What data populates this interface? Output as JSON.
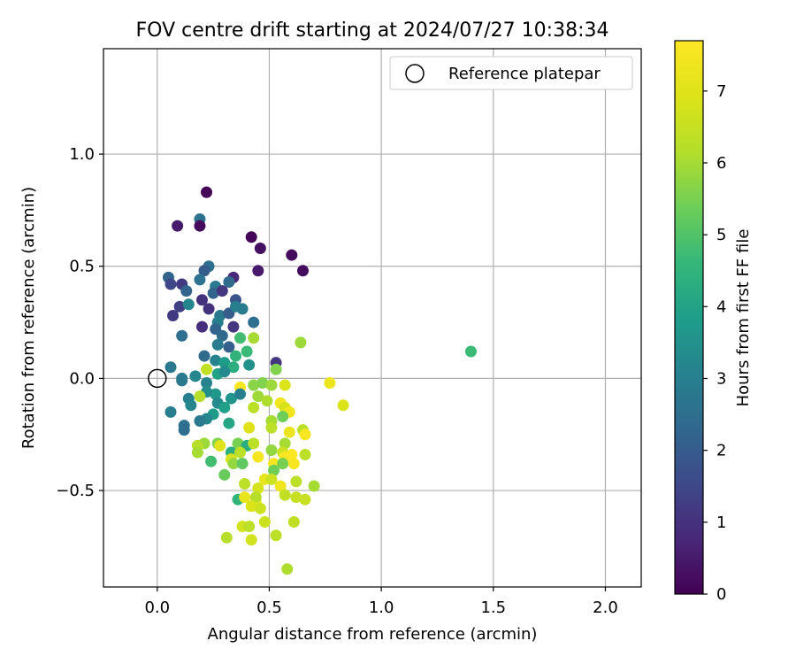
{
  "chart_data": {
    "type": "scatter",
    "title": "FOV centre drift starting at 2024/07/27 10:38:34",
    "xlabel": "Angular distance from reference (arcmin)",
    "ylabel": "Rotation from reference (arcmin)",
    "xlim": [
      -0.24,
      2.16
    ],
    "ylim": [
      -0.93,
      1.47
    ],
    "xticks": [
      0.0,
      0.5,
      1.0,
      1.5,
      2.0
    ],
    "xtick_labels": [
      "0.0",
      "0.5",
      "1.0",
      "1.5",
      "2.0"
    ],
    "yticks": [
      -0.5,
      0.0,
      0.5,
      1.0
    ],
    "ytick_labels": [
      "−0.5",
      "0.0",
      "0.5",
      "1.0"
    ],
    "grid": true,
    "legend": {
      "placement": "top-right",
      "entries": [
        "Reference platepar"
      ]
    },
    "reference_point": {
      "x": 0.0,
      "y": 0.0,
      "label": "Reference platepar"
    },
    "colorbar": {
      "label": "Hours from first FF file",
      "colormap": "viridis",
      "range": [
        0,
        7.7
      ],
      "ticks": [
        0,
        1,
        2,
        3,
        4,
        5,
        6,
        7
      ],
      "tick_labels": [
        "0",
        "1",
        "2",
        "3",
        "4",
        "5",
        "6",
        "7"
      ]
    },
    "points": [
      {
        "x": 0.22,
        "y": 0.83,
        "c": 0.1
      },
      {
        "x": 0.19,
        "y": 0.71,
        "c": 2.6
      },
      {
        "x": 0.09,
        "y": 0.68,
        "c": 0.5
      },
      {
        "x": 0.19,
        "y": 0.68,
        "c": 0.2
      },
      {
        "x": 0.42,
        "y": 0.63,
        "c": 0.1
      },
      {
        "x": 0.46,
        "y": 0.58,
        "c": 0.3
      },
      {
        "x": 0.6,
        "y": 0.55,
        "c": 0.2
      },
      {
        "x": 0.65,
        "y": 0.48,
        "c": 0.2
      },
      {
        "x": 0.45,
        "y": 0.48,
        "c": 0.5
      },
      {
        "x": 0.23,
        "y": 0.5,
        "c": 2.5
      },
      {
        "x": 0.21,
        "y": 0.48,
        "c": 2.0
      },
      {
        "x": 0.05,
        "y": 0.45,
        "c": 2.2
      },
      {
        "x": 0.34,
        "y": 0.45,
        "c": 0.8
      },
      {
        "x": 0.06,
        "y": 0.42,
        "c": 1.5
      },
      {
        "x": 0.11,
        "y": 0.42,
        "c": 1.2
      },
      {
        "x": 0.19,
        "y": 0.44,
        "c": 2.6
      },
      {
        "x": 0.32,
        "y": 0.43,
        "c": 2.4
      },
      {
        "x": 0.26,
        "y": 0.41,
        "c": 2.8
      },
      {
        "x": 0.13,
        "y": 0.39,
        "c": 2.2
      },
      {
        "x": 0.25,
        "y": 0.38,
        "c": 2.2
      },
      {
        "x": 0.29,
        "y": 0.39,
        "c": 1.1
      },
      {
        "x": 0.35,
        "y": 0.35,
        "c": 1.8
      },
      {
        "x": 0.2,
        "y": 0.35,
        "c": 1.0
      },
      {
        "x": 0.1,
        "y": 0.32,
        "c": 1.3
      },
      {
        "x": 0.14,
        "y": 0.33,
        "c": 3.2
      },
      {
        "x": 0.23,
        "y": 0.31,
        "c": 1.0
      },
      {
        "x": 0.28,
        "y": 0.28,
        "c": 2.8
      },
      {
        "x": 0.32,
        "y": 0.29,
        "c": 2.0
      },
      {
        "x": 0.35,
        "y": 0.32,
        "c": 3.0
      },
      {
        "x": 0.38,
        "y": 0.31,
        "c": 2.9
      },
      {
        "x": 0.07,
        "y": 0.28,
        "c": 1.2
      },
      {
        "x": 0.27,
        "y": 0.25,
        "c": 3.0
      },
      {
        "x": 0.43,
        "y": 0.25,
        "c": 2.5
      },
      {
        "x": 0.2,
        "y": 0.23,
        "c": 0.9
      },
      {
        "x": 0.26,
        "y": 0.22,
        "c": 2.2
      },
      {
        "x": 0.34,
        "y": 0.23,
        "c": 1.1
      },
      {
        "x": 0.11,
        "y": 0.19,
        "c": 2.5
      },
      {
        "x": 0.29,
        "y": 0.19,
        "c": 2.4
      },
      {
        "x": 0.37,
        "y": 0.18,
        "c": 4.8
      },
      {
        "x": 0.43,
        "y": 0.18,
        "c": 6.0
      },
      {
        "x": 0.64,
        "y": 0.16,
        "c": 5.9
      },
      {
        "x": 0.27,
        "y": 0.15,
        "c": 2.9
      },
      {
        "x": 0.32,
        "y": 0.14,
        "c": 2.1
      },
      {
        "x": 0.4,
        "y": 0.12,
        "c": 4.7
      },
      {
        "x": 1.4,
        "y": 0.12,
        "c": 4.7
      },
      {
        "x": 0.21,
        "y": 0.1,
        "c": 2.4
      },
      {
        "x": 0.35,
        "y": 0.1,
        "c": 4.5
      },
      {
        "x": 0.53,
        "y": 0.07,
        "c": 1.1
      },
      {
        "x": 0.26,
        "y": 0.08,
        "c": 3.1
      },
      {
        "x": 0.3,
        "y": 0.07,
        "c": 3.8
      },
      {
        "x": 0.41,
        "y": 0.06,
        "c": 3.5
      },
      {
        "x": 0.06,
        "y": 0.05,
        "c": 2.8
      },
      {
        "x": 0.22,
        "y": 0.04,
        "c": 6.4
      },
      {
        "x": 0.34,
        "y": 0.05,
        "c": 4.3
      },
      {
        "x": 0.53,
        "y": 0.04,
        "c": 5.6
      },
      {
        "x": 0.17,
        "y": 0.01,
        "c": 3.2
      },
      {
        "x": 0.27,
        "y": 0.02,
        "c": 4.0
      },
      {
        "x": 0.3,
        "y": 0.03,
        "c": 3.3
      },
      {
        "x": 0.11,
        "y": -0.01,
        "c": 2.8
      },
      {
        "x": 0.11,
        "y": 0.0,
        "c": 2.8
      },
      {
        "x": 0.22,
        "y": -0.02,
        "c": 3.1
      },
      {
        "x": 0.37,
        "y": -0.04,
        "c": 7.6
      },
      {
        "x": 0.43,
        "y": -0.03,
        "c": 5.7
      },
      {
        "x": 0.47,
        "y": -0.02,
        "c": 5.6
      },
      {
        "x": 0.51,
        "y": -0.03,
        "c": 5.9
      },
      {
        "x": 0.57,
        "y": -0.03,
        "c": 6.9
      },
      {
        "x": 0.77,
        "y": -0.02,
        "c": 7.3
      },
      {
        "x": 0.26,
        "y": -0.07,
        "c": 3.7
      },
      {
        "x": 0.33,
        "y": -0.09,
        "c": 3.6
      },
      {
        "x": 0.37,
        "y": -0.07,
        "c": 3.0
      },
      {
        "x": 0.22,
        "y": -0.06,
        "c": 3.4
      },
      {
        "x": 0.14,
        "y": -0.09,
        "c": 3.0
      },
      {
        "x": 0.19,
        "y": -0.08,
        "c": 6.2
      },
      {
        "x": 0.45,
        "y": -0.08,
        "c": 5.9
      },
      {
        "x": 0.49,
        "y": -0.1,
        "c": 6.1
      },
      {
        "x": 0.55,
        "y": -0.11,
        "c": 7.4
      },
      {
        "x": 0.57,
        "y": -0.13,
        "c": 6.8
      },
      {
        "x": 0.83,
        "y": -0.12,
        "c": 6.9
      },
      {
        "x": 0.15,
        "y": -0.12,
        "c": 3.2
      },
      {
        "x": 0.27,
        "y": -0.11,
        "c": 3.3
      },
      {
        "x": 0.3,
        "y": -0.13,
        "c": 3.9
      },
      {
        "x": 0.43,
        "y": -0.13,
        "c": 6.3
      },
      {
        "x": 0.59,
        "y": -0.15,
        "c": 7.4
      },
      {
        "x": 0.06,
        "y": -0.15,
        "c": 3.0
      },
      {
        "x": 0.25,
        "y": -0.16,
        "c": 3.8
      },
      {
        "x": 0.22,
        "y": -0.18,
        "c": 3.2
      },
      {
        "x": 0.56,
        "y": -0.17,
        "c": 5.4
      },
      {
        "x": 0.19,
        "y": -0.19,
        "c": 2.8
      },
      {
        "x": 0.32,
        "y": -0.2,
        "c": 4.1
      },
      {
        "x": 0.51,
        "y": -0.19,
        "c": 6.0
      },
      {
        "x": 0.12,
        "y": -0.21,
        "c": 2.6
      },
      {
        "x": 0.12,
        "y": -0.23,
        "c": 2.5
      },
      {
        "x": 0.51,
        "y": -0.22,
        "c": 6.3
      },
      {
        "x": 0.59,
        "y": -0.24,
        "c": 7.3
      },
      {
        "x": 0.65,
        "y": -0.23,
        "c": 6.3
      },
      {
        "x": 0.66,
        "y": -0.25,
        "c": 7.6
      },
      {
        "x": 0.41,
        "y": -0.22,
        "c": 7.0
      },
      {
        "x": 0.21,
        "y": -0.29,
        "c": 5.9
      },
      {
        "x": 0.27,
        "y": -0.29,
        "c": 5.6
      },
      {
        "x": 0.28,
        "y": -0.3,
        "c": 7.0
      },
      {
        "x": 0.36,
        "y": -0.29,
        "c": 5.5
      },
      {
        "x": 0.4,
        "y": -0.3,
        "c": 4.3
      },
      {
        "x": 0.43,
        "y": -0.29,
        "c": 6.3
      },
      {
        "x": 0.57,
        "y": -0.29,
        "c": 6.0
      },
      {
        "x": 0.18,
        "y": -0.3,
        "c": 6.2
      },
      {
        "x": 0.33,
        "y": -0.33,
        "c": 4.3
      },
      {
        "x": 0.37,
        "y": -0.33,
        "c": 6.3
      },
      {
        "x": 0.45,
        "y": -0.35,
        "c": 7.5
      },
      {
        "x": 0.51,
        "y": -0.32,
        "c": 5.8
      },
      {
        "x": 0.56,
        "y": -0.33,
        "c": 6.6
      },
      {
        "x": 0.57,
        "y": -0.35,
        "c": 7.6
      },
      {
        "x": 0.6,
        "y": -0.34,
        "c": 7.7
      },
      {
        "x": 0.66,
        "y": -0.34,
        "c": 6.3
      },
      {
        "x": 0.18,
        "y": -0.33,
        "c": 6.0
      },
      {
        "x": 0.24,
        "y": -0.37,
        "c": 4.8
      },
      {
        "x": 0.33,
        "y": -0.36,
        "c": 6.8
      },
      {
        "x": 0.34,
        "y": -0.38,
        "c": 5.8
      },
      {
        "x": 0.38,
        "y": -0.38,
        "c": 5.2
      },
      {
        "x": 0.52,
        "y": -0.38,
        "c": 7.6
      },
      {
        "x": 0.56,
        "y": -0.38,
        "c": 5.5
      },
      {
        "x": 0.61,
        "y": -0.38,
        "c": 7.6
      },
      {
        "x": 0.52,
        "y": -0.41,
        "c": 5.4
      },
      {
        "x": 0.3,
        "y": -0.43,
        "c": 5.3
      },
      {
        "x": 0.48,
        "y": -0.45,
        "c": 7.2
      },
      {
        "x": 0.51,
        "y": -0.45,
        "c": 6.6
      },
      {
        "x": 0.55,
        "y": -0.48,
        "c": 7.4
      },
      {
        "x": 0.62,
        "y": -0.46,
        "c": 6.3
      },
      {
        "x": 0.7,
        "y": -0.48,
        "c": 6.0
      },
      {
        "x": 0.39,
        "y": -0.47,
        "c": 6.3
      },
      {
        "x": 0.45,
        "y": -0.49,
        "c": 6.8
      },
      {
        "x": 0.57,
        "y": -0.52,
        "c": 6.4
      },
      {
        "x": 0.36,
        "y": -0.54,
        "c": 4.5
      },
      {
        "x": 0.39,
        "y": -0.53,
        "c": 7.2
      },
      {
        "x": 0.44,
        "y": -0.55,
        "c": 7.5
      },
      {
        "x": 0.44,
        "y": -0.53,
        "c": 6.2
      },
      {
        "x": 0.62,
        "y": -0.53,
        "c": 6.5
      },
      {
        "x": 0.66,
        "y": -0.54,
        "c": 6.5
      },
      {
        "x": 0.42,
        "y": -0.57,
        "c": 6.9
      },
      {
        "x": 0.46,
        "y": -0.58,
        "c": 6.6
      },
      {
        "x": 0.38,
        "y": -0.66,
        "c": 6.7
      },
      {
        "x": 0.41,
        "y": -0.66,
        "c": 6.3
      },
      {
        "x": 0.48,
        "y": -0.64,
        "c": 6.6
      },
      {
        "x": 0.61,
        "y": -0.64,
        "c": 6.4
      },
      {
        "x": 0.31,
        "y": -0.71,
        "c": 6.2
      },
      {
        "x": 0.42,
        "y": -0.72,
        "c": 6.7
      },
      {
        "x": 0.53,
        "y": -0.7,
        "c": 6.3
      },
      {
        "x": 0.58,
        "y": -0.85,
        "c": 6.1
      }
    ]
  }
}
